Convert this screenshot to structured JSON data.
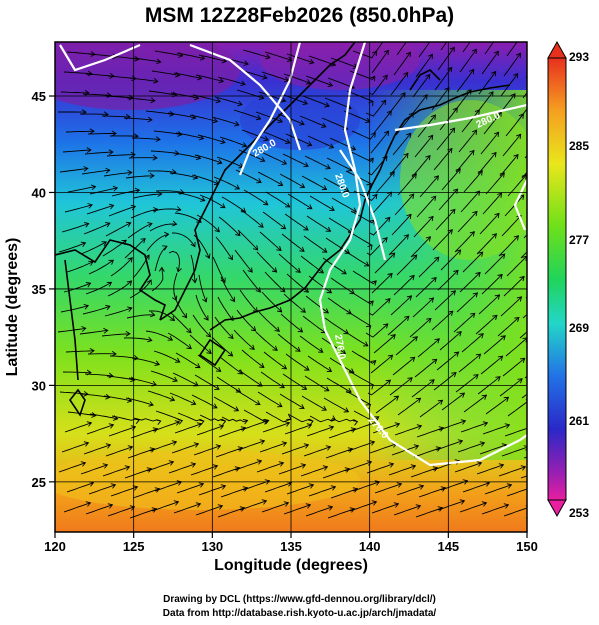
{
  "title": "MSM 12Z28Feb2026 (850.0hPa)",
  "x_axis": {
    "label": "Longitude (degrees)",
    "ticks": [
      "120",
      "125",
      "130",
      "135",
      "140",
      "145",
      "150"
    ]
  },
  "y_axis": {
    "label": "Latitude  (degrees)",
    "ticks": [
      "45",
      "40",
      "35",
      "30",
      "25"
    ]
  },
  "colorbar": {
    "labels": [
      "293",
      "285",
      "277",
      "269",
      "261",
      "253"
    ]
  },
  "contour_labels": [
    "280.0",
    "280.0",
    "280.0",
    "276.0",
    "276.0"
  ],
  "credits": {
    "line1": "Drawing by DCL (https://www.gfd-dennou.org/library/dcl/)",
    "line2": "Data from http://database.rish.kyoto-u.ac.jp/arch/jmadata/"
  },
  "colors": {
    "cold": "#7a1fa8",
    "mid": "#27d6c2",
    "warm": "#f07a1c",
    "contour": "#ffffff"
  }
}
